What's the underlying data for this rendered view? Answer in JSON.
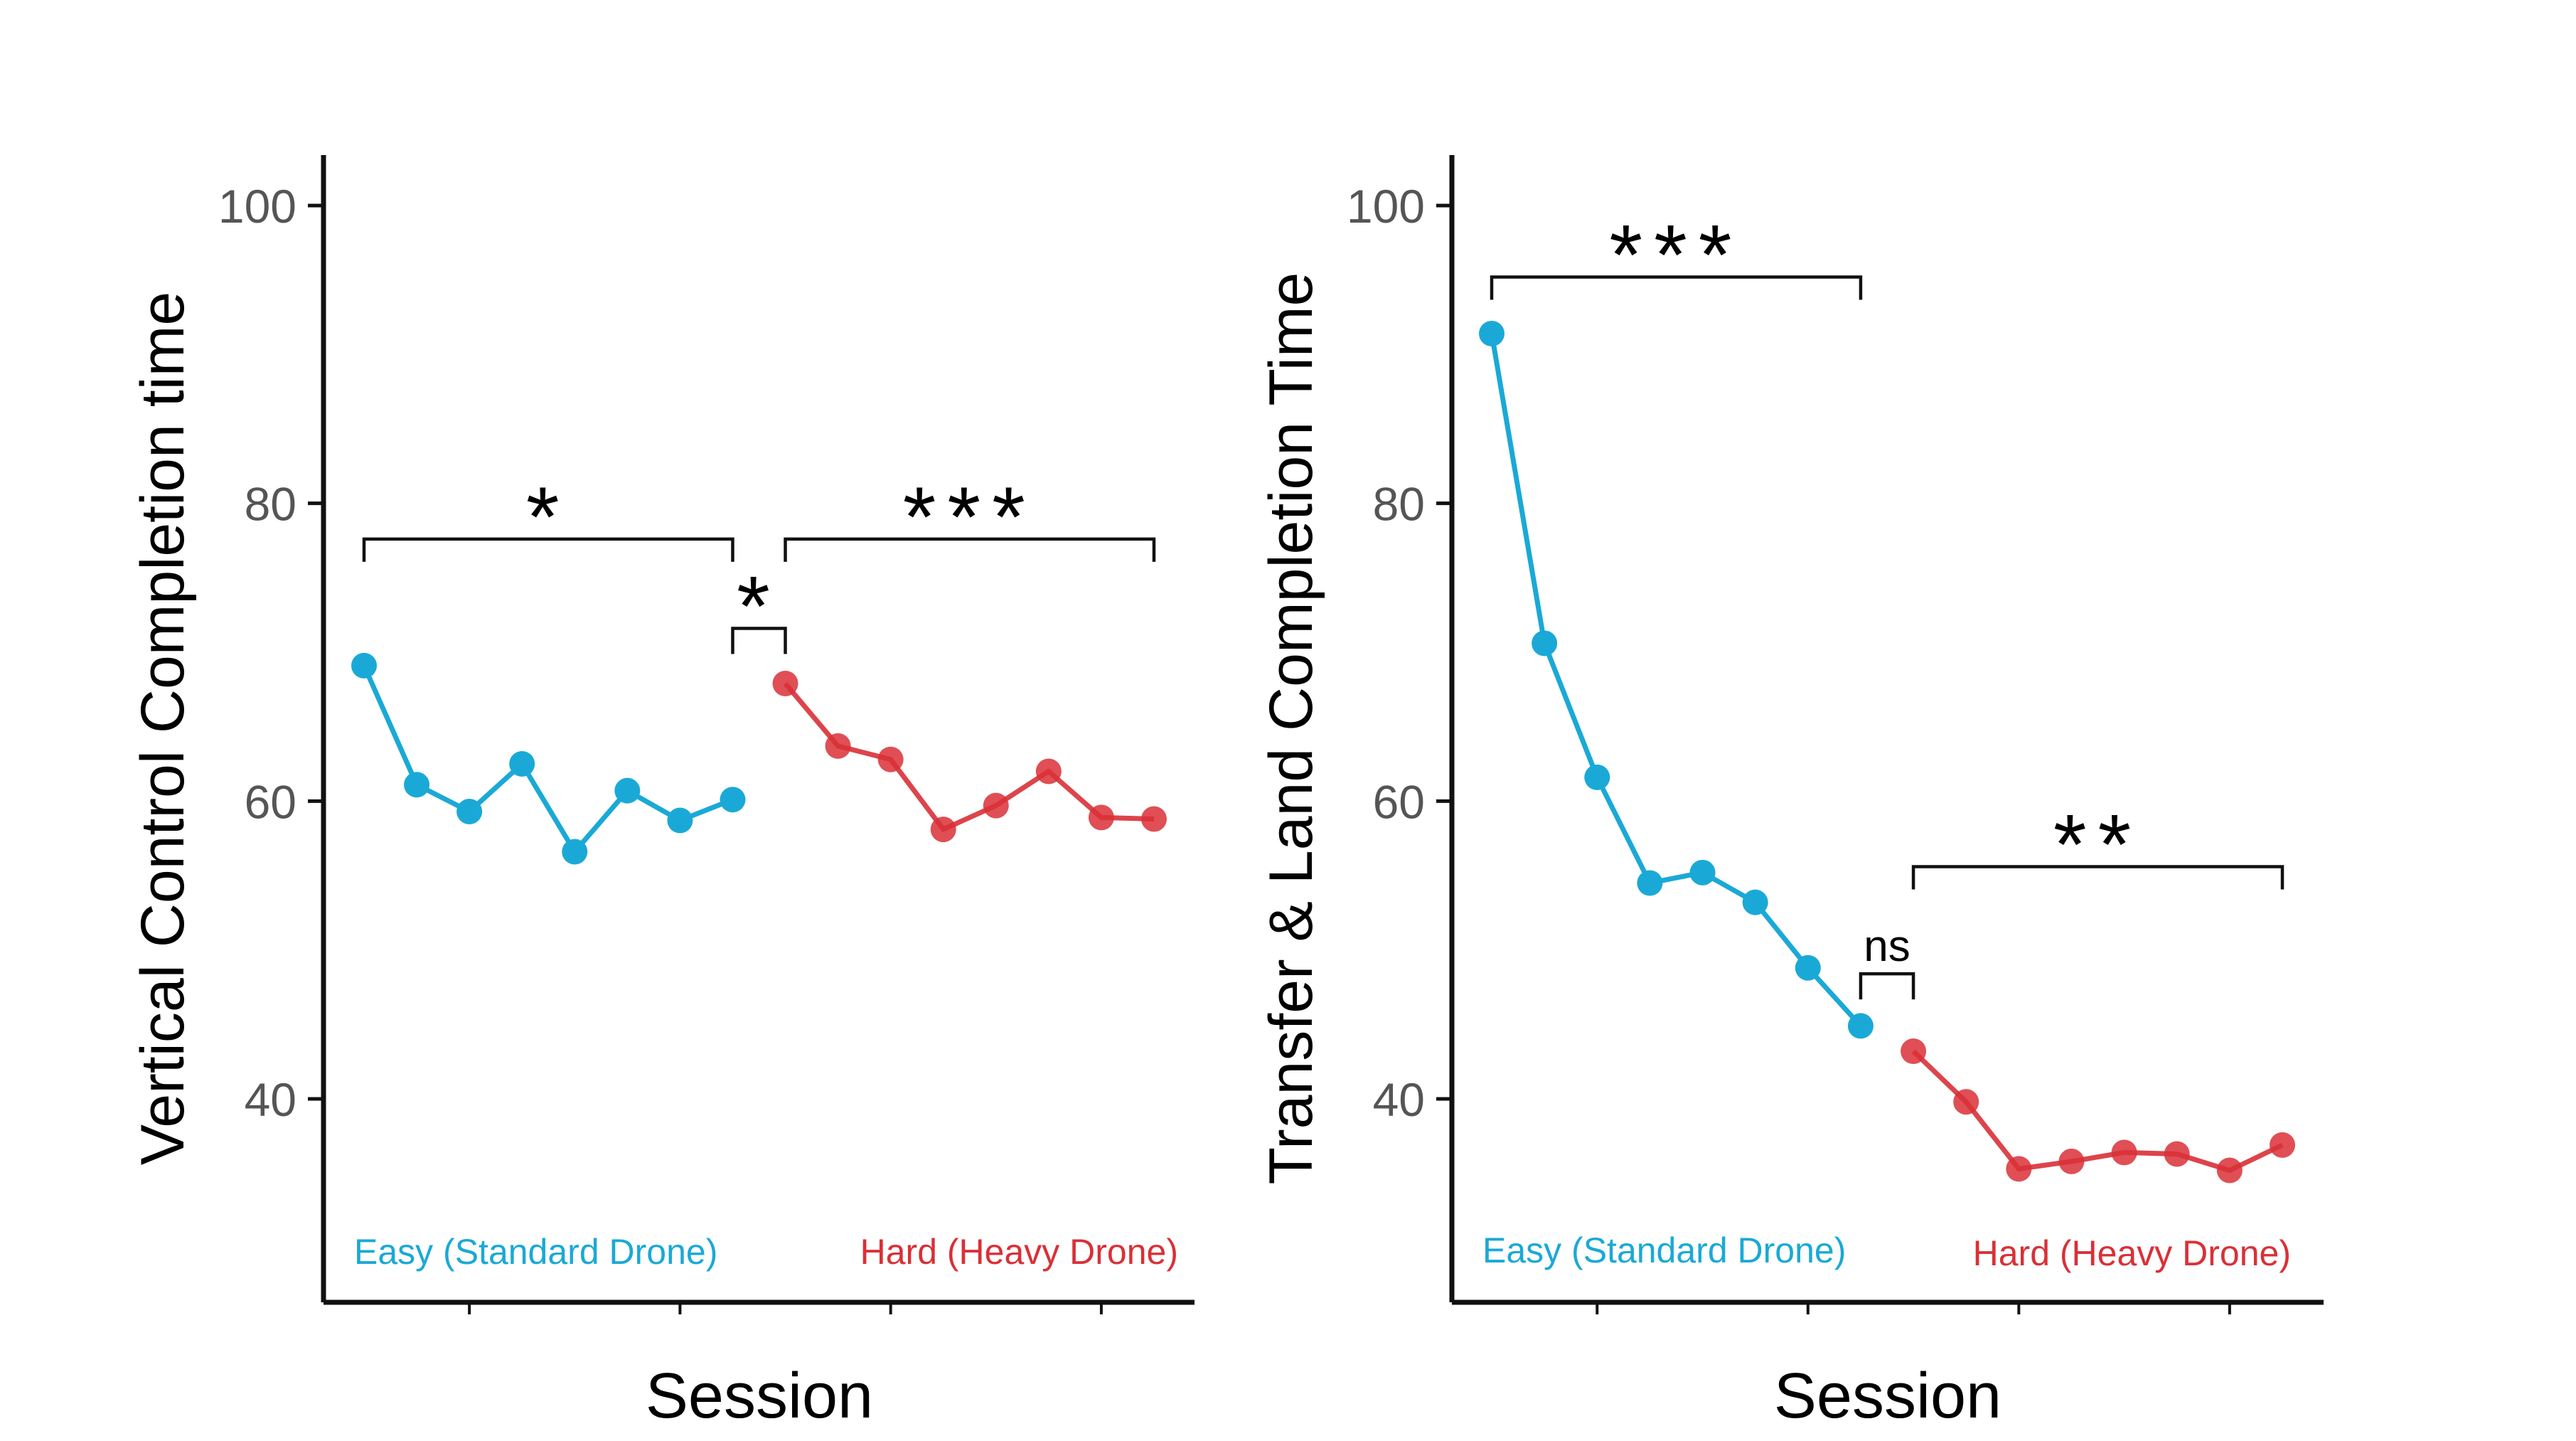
{
  "chart_data": [
    {
      "type": "line",
      "xlabel": "Session",
      "ylabel": "Vertical Control Completion time",
      "ylim": [
        27,
        103
      ],
      "yticks": [
        "40",
        "60",
        "80",
        "100"
      ],
      "ytick_values": [
        40,
        60,
        80,
        100
      ],
      "grid": false,
      "series": [
        {
          "name": "Easy (Standard Drone)",
          "color": "#1aa9d6",
          "x": [
            1,
            2,
            3,
            4,
            5,
            6,
            7,
            8
          ],
          "values": [
            69.1,
            61.1,
            59.3,
            62.5,
            56.6,
            60.7,
            58.7,
            60.1
          ]
        },
        {
          "name": "Hard (Heavy Drone)",
          "color": "#d93037",
          "x": [
            9,
            10,
            11,
            12,
            13,
            14,
            15,
            16
          ],
          "values": [
            67.9,
            63.7,
            62.8,
            58.1,
            59.7,
            62.0,
            58.9,
            58.8
          ]
        }
      ],
      "annotations": [
        {
          "label": "*",
          "from": 1,
          "to": 8,
          "y": 77.6
        },
        {
          "label": "*",
          "from": 8,
          "to": 9,
          "y": 71.6
        },
        {
          "label": "***",
          "from": 9,
          "to": 16,
          "y": 77.6
        }
      ]
    },
    {
      "type": "line",
      "xlabel": "Session",
      "ylabel": "Transfer & Land Completion Time",
      "ylim": [
        27,
        103
      ],
      "yticks": [
        "40",
        "60",
        "80",
        "100"
      ],
      "ytick_values": [
        40,
        60,
        80,
        100
      ],
      "grid": false,
      "series": [
        {
          "name": "Easy (Standard Drone)",
          "color": "#1aa9d6",
          "x": [
            1,
            2,
            3,
            4,
            5,
            6,
            7,
            8
          ],
          "values": [
            91.4,
            70.6,
            61.6,
            54.5,
            55.2,
            53.2,
            48.8,
            44.9
          ]
        },
        {
          "name": "Hard (Heavy Drone)",
          "color": "#d93037",
          "x": [
            9,
            10,
            11,
            12,
            13,
            14,
            15,
            16
          ],
          "values": [
            43.2,
            39.8,
            35.3,
            35.8,
            36.4,
            36.3,
            35.2,
            36.9
          ]
        }
      ],
      "annotations": [
        {
          "label": "***",
          "from": 1,
          "to": 8,
          "y": 95.2
        },
        {
          "label": "ns",
          "from": 8,
          "to": 9,
          "y": 48.4
        },
        {
          "label": "**",
          "from": 9,
          "to": 16,
          "y": 55.6
        }
      ]
    }
  ]
}
